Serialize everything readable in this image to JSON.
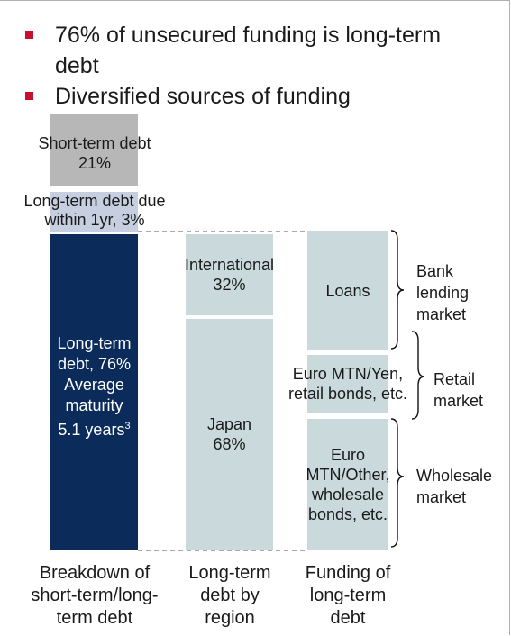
{
  "bullets": [
    {
      "line1": "76% of unsecured funding is long-term",
      "line2": "debt"
    },
    {
      "line1": "Diversified sources of funding"
    }
  ],
  "col1": {
    "short_term": {
      "label": "Short-term debt",
      "value": "21%"
    },
    "lt_due": {
      "line1": "Long-term debt due",
      "line2": "within 1yr, 3%"
    },
    "long_term": {
      "line1": "Long-term",
      "line2": "debt, 76%",
      "line3": "Average",
      "line4": "maturity",
      "line5": "5.1 years",
      "sup": "3"
    }
  },
  "col2": {
    "international": {
      "label": "International",
      "value": "32%"
    },
    "japan": {
      "label": "Japan",
      "value": "68%"
    }
  },
  "col3": {
    "loans": "Loans",
    "retail": {
      "line1": "Euro MTN/Yen,",
      "line2": "retail bonds, etc."
    },
    "wholesale": {
      "line1": "Euro",
      "line2": "MTN/Other,",
      "line3": "wholesale",
      "line4": "bonds, etc."
    }
  },
  "markets": {
    "bank": {
      "line1": "Bank",
      "line2": "lending",
      "line3": "market"
    },
    "retail": {
      "line1": "Retail",
      "line2": "market"
    },
    "wholesale": {
      "line1": "Wholesale",
      "line2": "market"
    }
  },
  "captions": {
    "col1": {
      "line1": "Breakdown of",
      "line2": "short-term/long-",
      "line3": "term debt"
    },
    "col2": {
      "line1": "Long-term",
      "line2": "debt by",
      "line3": "region"
    },
    "col3": {
      "line1": "Funding of",
      "line2": "long-term",
      "line3": "debt"
    }
  },
  "colors": {
    "red": "#c8102e",
    "gray": "#b7b7b7",
    "light_blue_gray": "#c5cfdf",
    "navy": "#0b2c5a",
    "pale_teal": "#c9d9dc"
  }
}
